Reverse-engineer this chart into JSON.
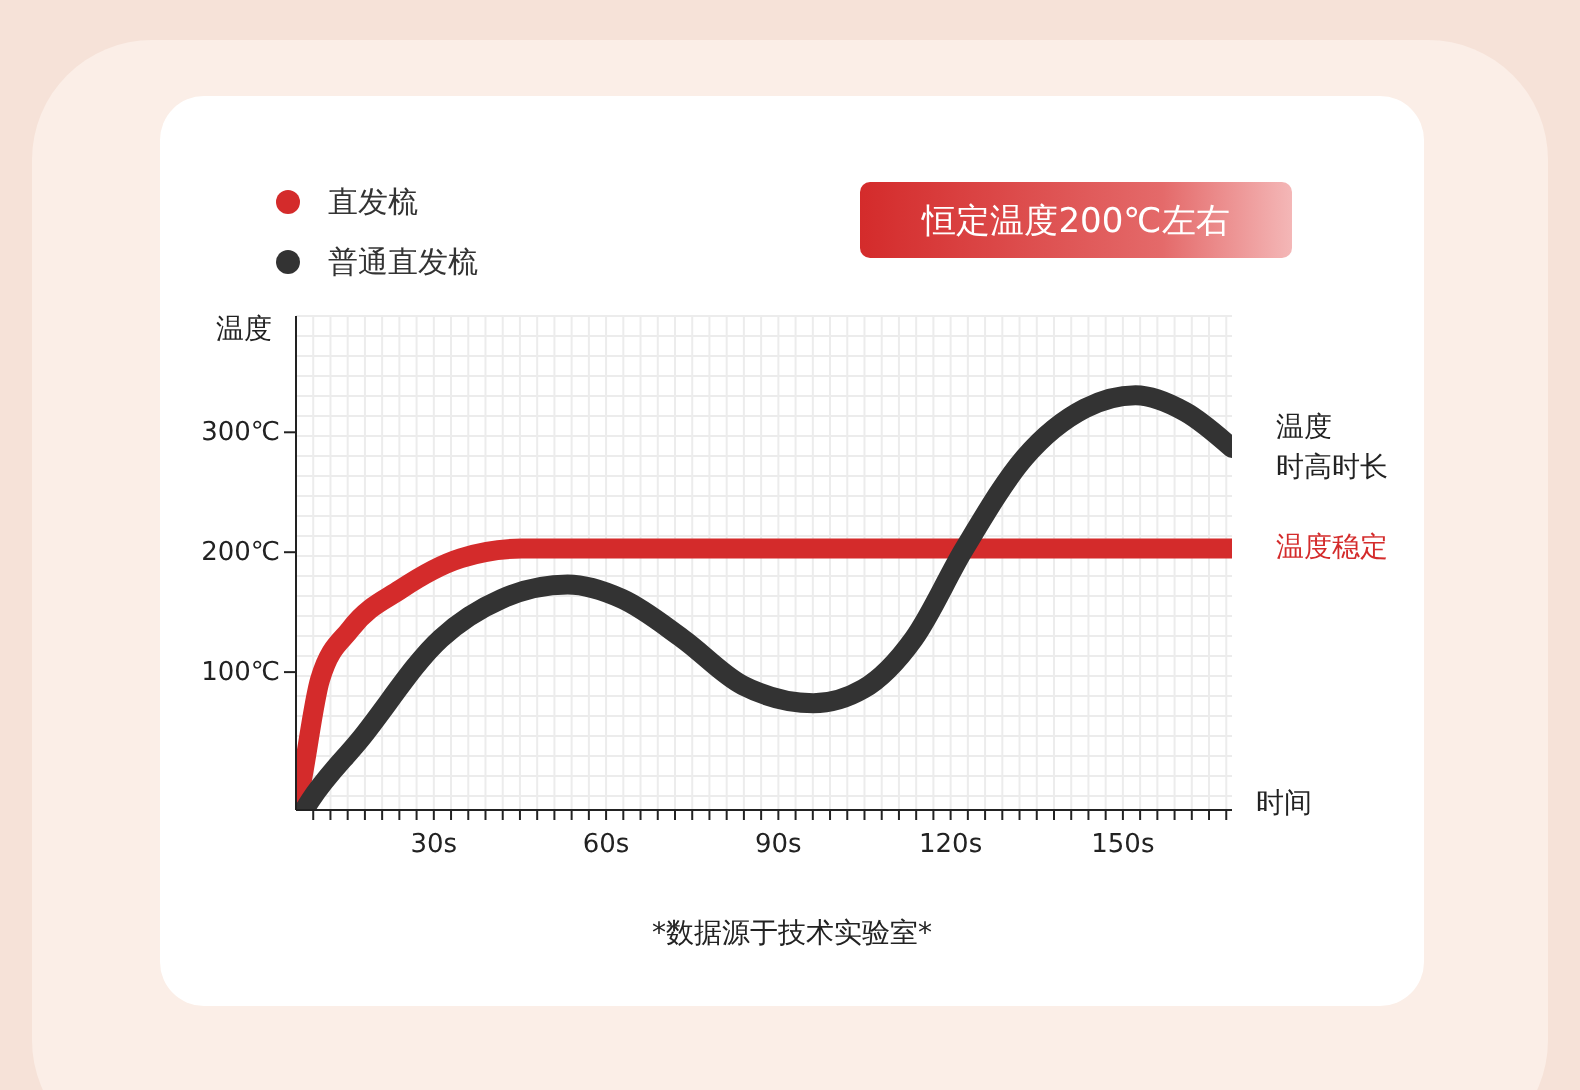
{
  "chart_data": {
    "type": "line",
    "xlabel": "时间",
    "ylabel": "温度",
    "xlim": [
      6,
      169
    ],
    "ylim": [
      -15,
      397
    ],
    "xticks": [
      {
        "value": 9,
        "label": null
      },
      {
        "value": 12,
        "label": null
      },
      {
        "value": 15,
        "label": null
      },
      {
        "value": 18,
        "label": null
      },
      {
        "value": 21,
        "label": null
      },
      {
        "value": 24,
        "label": null
      },
      {
        "value": 27,
        "label": null
      },
      {
        "value": 30,
        "label": "30s"
      },
      {
        "value": 33,
        "label": null
      },
      {
        "value": 36,
        "label": null
      },
      {
        "value": 39,
        "label": null
      },
      {
        "value": 42,
        "label": null
      },
      {
        "value": 45,
        "label": null
      },
      {
        "value": 48,
        "label": null
      },
      {
        "value": 51,
        "label": null
      },
      {
        "value": 54,
        "label": null
      },
      {
        "value": 57,
        "label": null
      },
      {
        "value": 60,
        "label": "60s"
      },
      {
        "value": 63,
        "label": null
      },
      {
        "value": 66,
        "label": null
      },
      {
        "value": 69,
        "label": null
      },
      {
        "value": 72,
        "label": null
      },
      {
        "value": 75,
        "label": null
      },
      {
        "value": 78,
        "label": null
      },
      {
        "value": 81,
        "label": null
      },
      {
        "value": 84,
        "label": null
      },
      {
        "value": 87,
        "label": null
      },
      {
        "value": 90,
        "label": "90s"
      },
      {
        "value": 93,
        "label": null
      },
      {
        "value": 96,
        "label": null
      },
      {
        "value": 99,
        "label": null
      },
      {
        "value": 102,
        "label": null
      },
      {
        "value": 105,
        "label": null
      },
      {
        "value": 108,
        "label": null
      },
      {
        "value": 111,
        "label": null
      },
      {
        "value": 114,
        "label": null
      },
      {
        "value": 117,
        "label": null
      },
      {
        "value": 120,
        "label": "120s"
      },
      {
        "value": 123,
        "label": null
      },
      {
        "value": 126,
        "label": null
      },
      {
        "value": 129,
        "label": null
      },
      {
        "value": 132,
        "label": null
      },
      {
        "value": 135,
        "label": null
      },
      {
        "value": 138,
        "label": null
      },
      {
        "value": 141,
        "label": null
      },
      {
        "value": 144,
        "label": null
      },
      {
        "value": 147,
        "label": null
      },
      {
        "value": 150,
        "label": "150s"
      },
      {
        "value": 153,
        "label": null
      },
      {
        "value": 156,
        "label": null
      },
      {
        "value": 159,
        "label": null
      },
      {
        "value": 162,
        "label": null
      },
      {
        "value": 165,
        "label": null
      },
      {
        "value": 168,
        "label": null
      }
    ],
    "yticks": [
      {
        "value": 100,
        "label": "100℃"
      },
      {
        "value": 200,
        "label": "200℃"
      },
      {
        "value": 300,
        "label": "300℃"
      }
    ],
    "grid": true,
    "legend": "top left",
    "marker": "none",
    "line_style": "solid",
    "series": [
      {
        "name": "直发梳",
        "color": "#d42b2b",
        "x": [
          6,
          6.7,
          10.2,
          15.5,
          24.2,
          34.7,
          45.3,
          59.3,
          169
        ],
        "values": [
          -13,
          2,
          94,
          136,
          169,
          195,
          203,
          203,
          203
        ]
      },
      {
        "name": "普通直发梳",
        "color": "#333333",
        "x": [
          7.7,
          8.5,
          17.2,
          31.2,
          41.8,
          53.3,
          62.8,
          73.3,
          83.8,
          96.1,
          104.8,
          113.6,
          122.4,
          132.9,
          143.4,
          152.2,
          160.9,
          169
        ],
        "values": [
          -13,
          -7,
          44,
          128,
          161,
          173,
          161,
          128,
          89,
          74,
          86,
          128,
          203,
          279,
          320,
          331,
          317,
          287
        ]
      }
    ],
    "annotations": [
      "恒定温度200℃左右",
      "温度",
      "时高时长",
      "温度稳定",
      "*数据源于技术实验室*"
    ]
  }
}
